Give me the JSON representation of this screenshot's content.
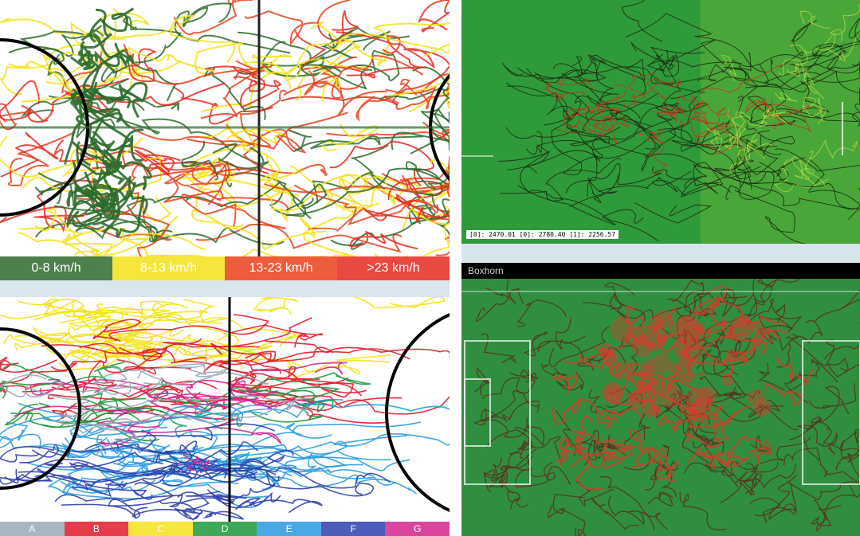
{
  "speed_panel": {
    "legend": [
      {
        "label": "0-8 km/h",
        "color": "#2e6b2e"
      },
      {
        "label": "8-13 km/h",
        "color": "#f5e21a"
      },
      {
        "label": "13-23 km/h",
        "color": "#e9401c"
      },
      {
        "label": ">23 km/h",
        "color": "#e52a20"
      }
    ]
  },
  "zone_panel": {
    "legend": [
      {
        "label": "A",
        "color": "#9aaab8"
      },
      {
        "label": "B",
        "color": "#e21b2b"
      },
      {
        "label": "C",
        "color": "#f3e21a"
      },
      {
        "label": "D",
        "color": "#1c9a3a"
      },
      {
        "label": "E",
        "color": "#2a9be0"
      },
      {
        "label": "F",
        "color": "#2f3fae"
      },
      {
        "label": "G",
        "color": "#d4268f"
      }
    ]
  },
  "track_panel": {
    "readout": "[0]: 2470.01  [0]: 2780.40  [1]: 2256.57"
  },
  "heat_panel": {
    "title": "Boxhorn"
  }
}
